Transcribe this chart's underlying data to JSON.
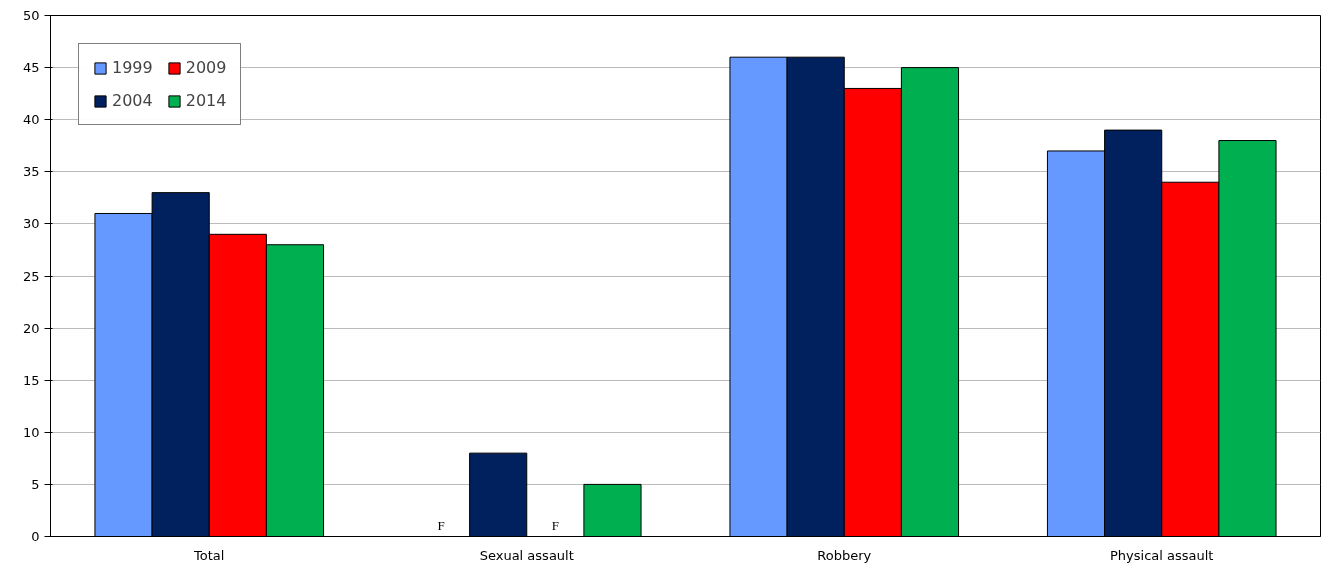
{
  "chart_data": {
    "type": "bar",
    "categories": [
      "Total",
      "Sexual assault",
      "Robbery",
      "Physical assault"
    ],
    "series": [
      {
        "name": "1999",
        "color": "#6699ff",
        "values": [
          31,
          null,
          46,
          37
        ],
        "value_labels": [
          null,
          "F",
          null,
          null
        ]
      },
      {
        "name": "2004",
        "color": "#00215e",
        "values": [
          33,
          8,
          46,
          39
        ]
      },
      {
        "name": "2009",
        "color": "#ff0000",
        "values": [
          29,
          null,
          43,
          34
        ],
        "value_labels": [
          null,
          "F",
          null,
          null
        ]
      },
      {
        "name": "2014",
        "color": "#00b050",
        "values": [
          28,
          5,
          45,
          38
        ]
      }
    ],
    "ylim": [
      0,
      50
    ],
    "yticks": [
      0,
      5,
      10,
      15,
      20,
      25,
      30,
      35,
      40,
      45,
      50
    ],
    "grid": "y",
    "legend": "top left"
  }
}
